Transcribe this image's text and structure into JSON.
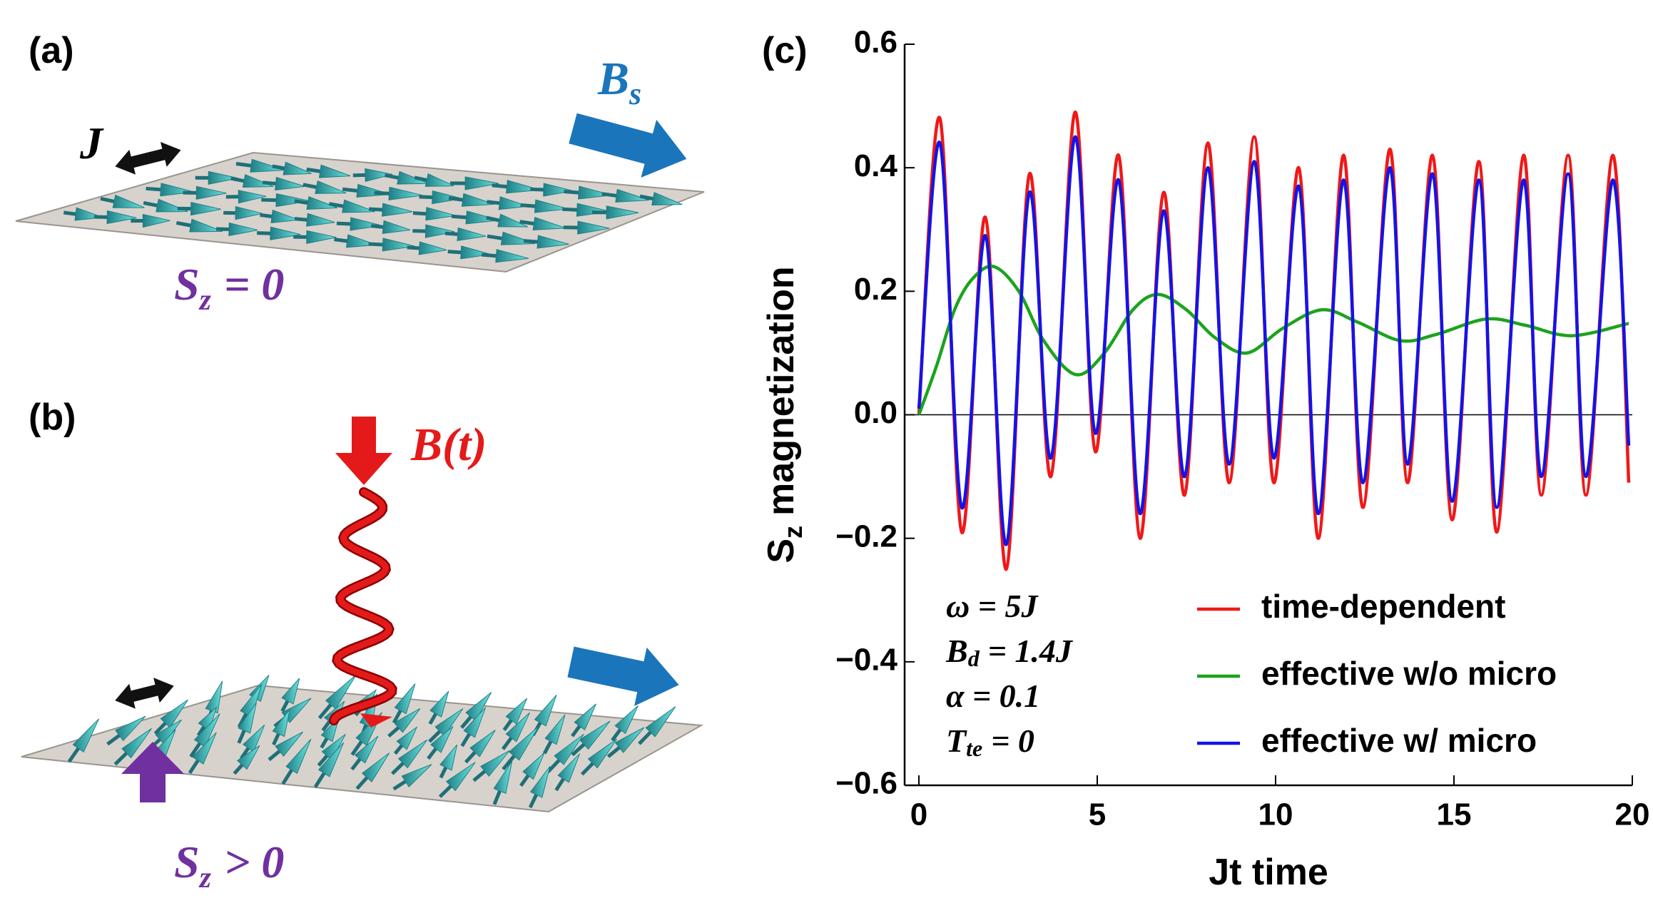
{
  "panel_a": {
    "label": "(a)",
    "coupling": "J",
    "field": {
      "symbol": "B",
      "subscript": "s"
    },
    "spin": {
      "symbol": "S",
      "subscript": "z",
      "relation": "= 0"
    }
  },
  "panel_b": {
    "label": "(b)",
    "field": "B(t)",
    "spin": {
      "symbol": "S",
      "subscript": "z",
      "relation": "> 0"
    }
  },
  "chart_data": {
    "type": "line",
    "panel_label": "(c)",
    "xlabel": "Jt time",
    "ylabel": {
      "symbol": "S",
      "subscript": "z",
      "text": "magnetization"
    },
    "xlim": [
      -0.4,
      20
    ],
    "ylim": [
      -0.6,
      0.6
    ],
    "xticks": [
      0,
      5,
      10,
      15,
      20
    ],
    "yticks": [
      0.6,
      0.4,
      0.2,
      {
        "value": 0,
        "label": "0.0"
      },
      {
        "value": -0.2,
        "label": "−0.2"
      },
      {
        "value": -0.4,
        "label": "−0.4"
      },
      {
        "value": -0.6,
        "label": "−0.6"
      }
    ],
    "zero_line": true,
    "grid": false,
    "legend": "lower right",
    "annotations": [
      {
        "text": "ω = 5J"
      },
      {
        "symbol": "B",
        "subscript": "d",
        "text": "= 1.4J"
      },
      {
        "text": "α = 0.1"
      },
      {
        "symbol": "T",
        "subscript": "te",
        "text": "= 0"
      }
    ],
    "series": [
      {
        "name": "time-dependent",
        "color": "#f01818",
        "x": [
          0,
          0.59,
          1.2,
          1.86,
          2.45,
          3.1,
          3.7,
          4.38,
          4.95,
          5.6,
          6.2,
          6.86,
          7.45,
          8.1,
          8.7,
          9.4,
          9.95,
          10.65,
          11.2,
          11.9,
          12.45,
          13.2,
          13.7,
          14.4,
          14.95,
          15.7,
          16.2,
          16.95,
          17.45,
          18.2,
          18.7,
          19.45,
          19.9
        ],
        "values": [
          0,
          0.48,
          -0.19,
          0.32,
          -0.25,
          0.39,
          -0.1,
          0.49,
          -0.06,
          0.42,
          -0.2,
          0.36,
          -0.13,
          0.44,
          -0.11,
          0.45,
          -0.11,
          0.4,
          -0.2,
          0.42,
          -0.15,
          0.43,
          -0.11,
          0.42,
          -0.17,
          0.41,
          -0.19,
          0.42,
          -0.13,
          0.42,
          -0.13,
          0.42,
          -0.11
        ]
      },
      {
        "name": "effective w/o micro",
        "color": "#1ca31c",
        "x": [
          0,
          0.5,
          1,
          1.5,
          2.1,
          2.8,
          3.5,
          4.4,
          5.2,
          6,
          6.7,
          7.5,
          8.3,
          9.2,
          10.2,
          11.3,
          12.3,
          13.5,
          14.5,
          15.9,
          17,
          18.3,
          19.9
        ],
        "values": [
          0,
          0.08,
          0.17,
          0.22,
          0.24,
          0.2,
          0.12,
          0.065,
          0.1,
          0.17,
          0.195,
          0.17,
          0.125,
          0.1,
          0.14,
          0.17,
          0.15,
          0.12,
          0.13,
          0.155,
          0.145,
          0.128,
          0.148
        ]
      },
      {
        "name": "effective w/ micro",
        "color": "#1414e6",
        "x": [
          0,
          0.59,
          1.2,
          1.86,
          2.45,
          3.1,
          3.7,
          4.38,
          4.95,
          5.6,
          6.2,
          6.86,
          7.45,
          8.1,
          8.7,
          9.4,
          9.95,
          10.65,
          11.2,
          11.9,
          12.45,
          13.2,
          13.7,
          14.4,
          14.95,
          15.7,
          16.2,
          16.95,
          17.45,
          18.2,
          18.7,
          19.45,
          19.9
        ],
        "values": [
          0.01,
          0.44,
          -0.15,
          0.29,
          -0.21,
          0.36,
          -0.07,
          0.45,
          -0.03,
          0.38,
          -0.16,
          0.33,
          -0.1,
          0.4,
          -0.08,
          0.41,
          -0.07,
          0.37,
          -0.16,
          0.38,
          -0.11,
          0.4,
          -0.08,
          0.39,
          -0.14,
          0.38,
          -0.15,
          0.38,
          -0.1,
          0.39,
          -0.1,
          0.38,
          -0.05
        ]
      }
    ]
  }
}
